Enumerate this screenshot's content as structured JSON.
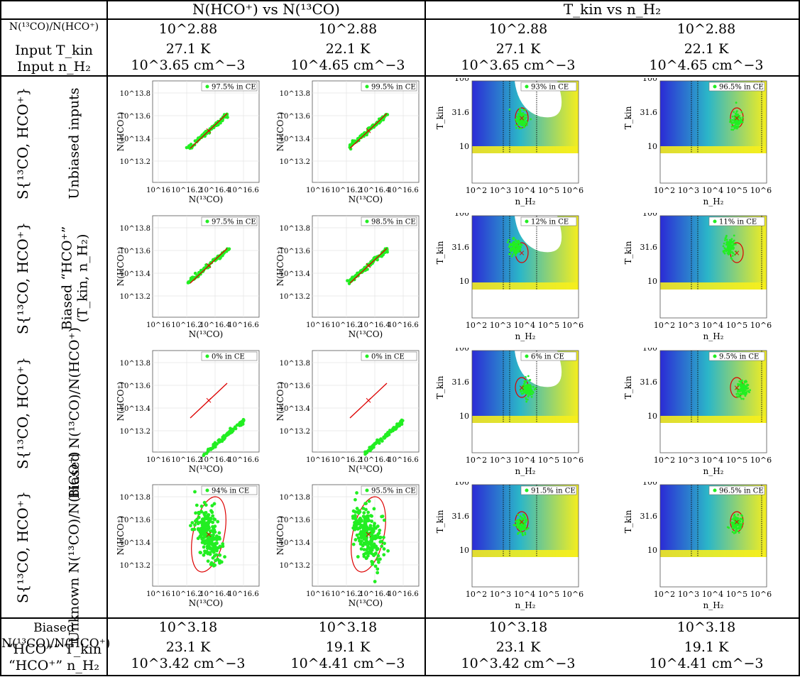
{
  "header": {
    "col1_title": "N(HCO⁺) vs N(¹³CO)",
    "col2_title": "T_kin vs n_H₂"
  },
  "input_labels": {
    "ratio": "N(¹³CO)/N(HCO⁺)",
    "tkin": "Input T_kin",
    "nh2": "Input n_H₂"
  },
  "input_columns": [
    {
      "ratio": "10^2.88",
      "tkin": "27.1 K",
      "nh2": "10^3.65 cm^−3"
    },
    {
      "ratio": "10^2.88",
      "tkin": "22.1 K",
      "nh2": "10^4.65 cm^−3"
    },
    {
      "ratio": "10^2.88",
      "tkin": "27.1 K",
      "nh2": "10^3.65 cm^−3"
    },
    {
      "ratio": "10^2.88",
      "tkin": "22.1 K",
      "nh2": "10^4.65 cm^−3"
    }
  ],
  "row_labels": [
    {
      "s": "S{¹³CO, HCO⁺}",
      "desc1": "Unbiased inputs",
      "desc2": ""
    },
    {
      "s": "S{¹³CO, HCO⁺}",
      "desc1": "Biased “HCO⁺”",
      "desc2": "(T_kin, n_H₂)"
    },
    {
      "s": "S{¹³CO, HCO⁺}",
      "desc1": "Biased N(¹³CO)/N(HCO⁺)",
      "desc2": ""
    },
    {
      "s": "S{¹³CO, HCO⁺}",
      "desc1": "Unknown N(¹³CO)/N(HCO⁺)",
      "desc2": ""
    }
  ],
  "panel_legends": [
    [
      "97.5% in CE",
      "99.5% in CE",
      "93% in CE",
      "96.5% in CE"
    ],
    [
      "97.5% in CE",
      "98.5% in CE",
      "12% in CE",
      "11% in CE"
    ],
    [
      "0% in CE",
      "0% in CE",
      "6% in CE",
      "9.5% in CE"
    ],
    [
      "94% in CE",
      "95.5% in CE",
      "91.5% in CE",
      "96.5% in CE"
    ]
  ],
  "axes": {
    "col_xlabel": "N(¹³CO)",
    "col_ylabel": "N(HCO⁺)",
    "col_xticks": [
      "10^16",
      "10^16.2",
      "10^16.4",
      "10^16.6"
    ],
    "col_yticks": [
      "10^13.2",
      "10^13.4",
      "10^13.6",
      "10^13.8"
    ],
    "phys_xlabel": "n_H₂",
    "phys_ylabel": "T_kin",
    "phys_xticks": [
      "10^2",
      "10^3",
      "10^4",
      "10^5",
      "10^6"
    ],
    "phys_yticks": [
      "10",
      "31.6",
      "100"
    ]
  },
  "bias_labels": {
    "ratio": "Biased N(¹³CO)/N(HCO⁺)",
    "tkin": "“HCO⁺” T_kin",
    "nh2": "“HCO⁺” n_H₂"
  },
  "bias_columns": [
    {
      "ratio": "10^3.18",
      "tkin": "23.1 K",
      "nh2": "10^3.42 cm^−3"
    },
    {
      "ratio": "10^3.18",
      "tkin": "19.1 K",
      "nh2": "10^4.41 cm^−3"
    },
    {
      "ratio": "10^3.18",
      "tkin": "23.1 K",
      "nh2": "10^3.42 cm^−3"
    },
    {
      "ratio": "10^3.18",
      "tkin": "19.1 K",
      "nh2": "10^4.41 cm^−3"
    }
  ],
  "colors": {
    "points": "#22ee22",
    "true_value": "#dd0000",
    "ellipse": "#dd0000",
    "map_low": "#2b2bd6",
    "map_mid": "#2bb6c8",
    "map_high": "#f5ee1e"
  }
}
